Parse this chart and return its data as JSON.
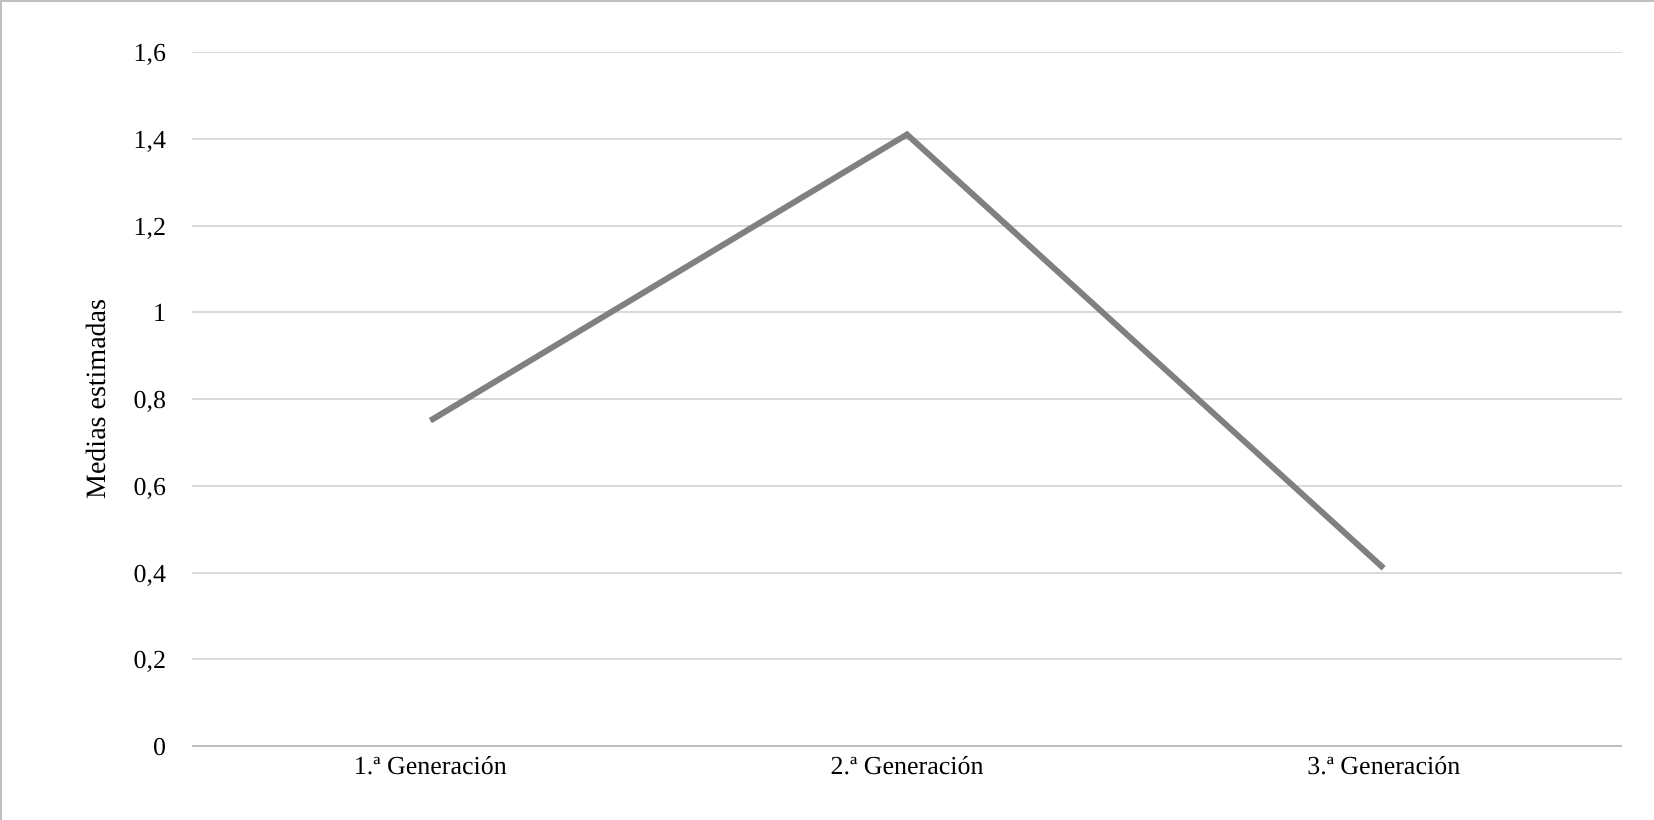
{
  "chart_data": {
    "type": "line",
    "ylabel": "Medias estimadas",
    "categories": [
      "1.ª Generación",
      "2.ª Generación",
      "3.ª Generación"
    ],
    "series": [
      {
        "color": "#808080",
        "values": [
          0.75,
          1.41,
          0.41
        ]
      }
    ],
    "ylim": [
      0,
      1.6
    ],
    "yticks": [
      0,
      {
        "value": 0.2,
        "label": "0,2"
      },
      {
        "value": 0.4,
        "label": "0,4"
      },
      {
        "value": 0.6,
        "label": "0,6"
      },
      {
        "value": 0.8,
        "label": "0,8"
      },
      1,
      {
        "value": 1.2,
        "label": "1,2"
      },
      {
        "value": 1.4,
        "label": "1,4"
      },
      {
        "value": 1.6,
        "label": "1,6"
      }
    ],
    "grid": "y",
    "marker": "none",
    "line_style": "solid"
  }
}
